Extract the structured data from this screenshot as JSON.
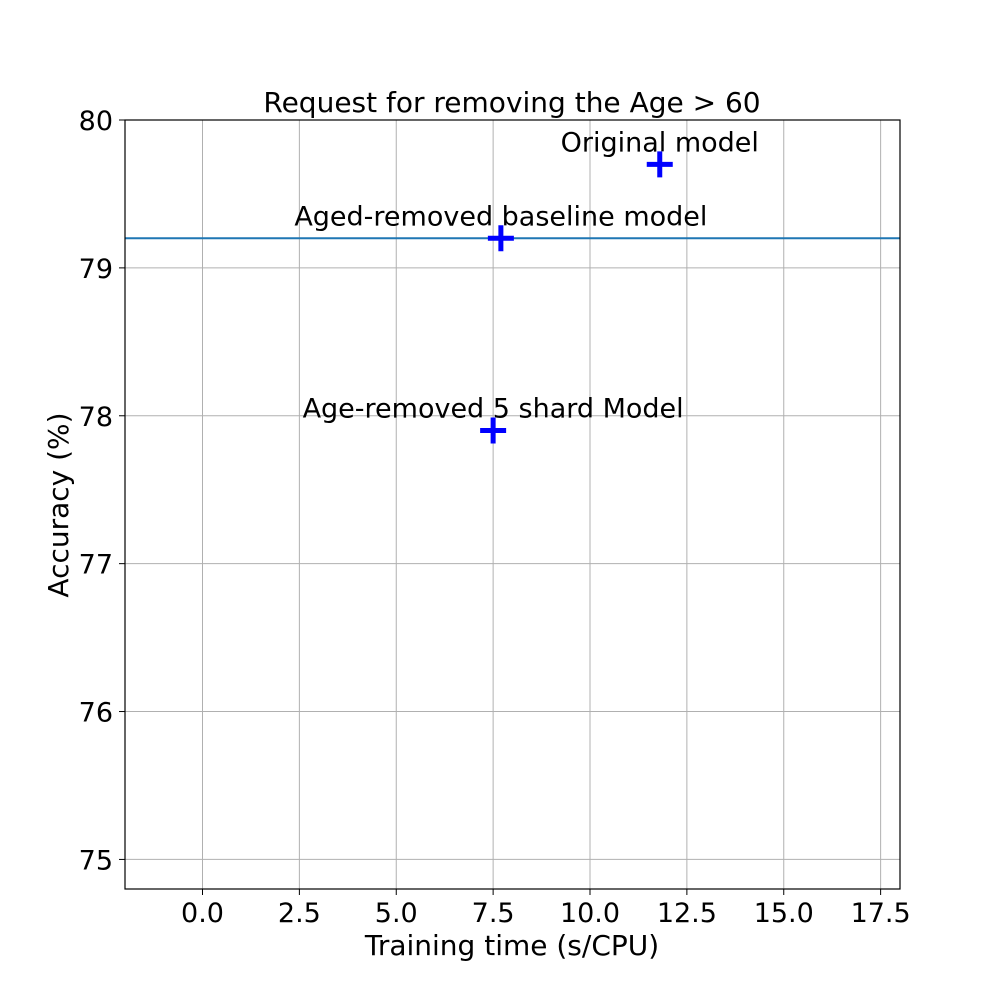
{
  "chart_data": {
    "type": "scatter",
    "title": "Request for removing the Age > 60",
    "xlabel": "Training time (s/CPU)",
    "ylabel": "Accuracy (%)",
    "xlim": [
      -2.0,
      18.0
    ],
    "ylim": [
      74.8,
      80.0
    ],
    "xticks": [
      0.0,
      2.5,
      5.0,
      7.5,
      10.0,
      12.5,
      15.0,
      17.5
    ],
    "xtick_labels": [
      "0.0",
      "2.5",
      "5.0",
      "7.5",
      "10.0",
      "12.5",
      "15.0",
      "17.5"
    ],
    "yticks": [
      75,
      76,
      77,
      78,
      79,
      80
    ],
    "ytick_labels": [
      "75",
      "76",
      "77",
      "78",
      "79",
      "80"
    ],
    "grid": true,
    "points": [
      {
        "x": 11.8,
        "y": 79.7,
        "label": "Original model"
      },
      {
        "x": 7.7,
        "y": 79.2,
        "label": "Aged-removed baseline model"
      },
      {
        "x": 7.5,
        "y": 77.9,
        "label": "Age-removed 5 shard Model"
      }
    ],
    "hline": {
      "y": 79.2
    },
    "colors": {
      "marker": "#0000ff",
      "hline": "#1f77b4",
      "grid": "#b0b0b0"
    }
  }
}
